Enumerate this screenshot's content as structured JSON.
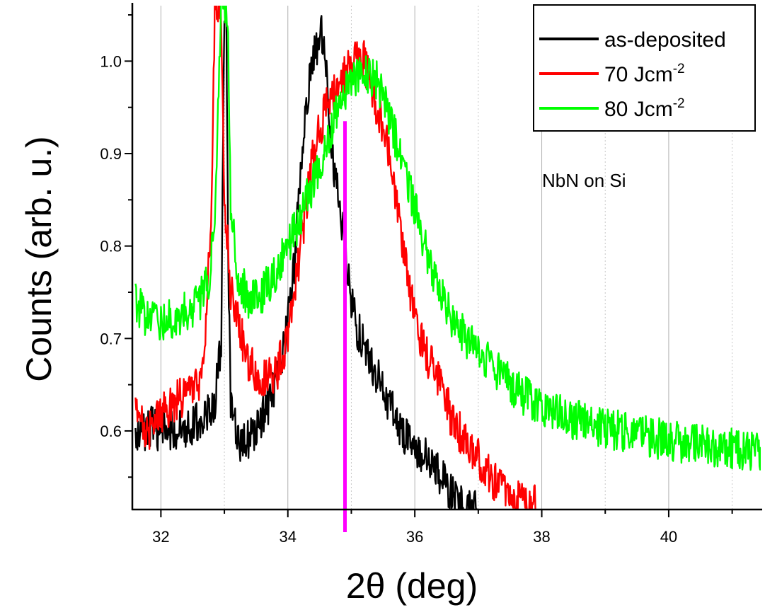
{
  "chart_data": {
    "type": "line",
    "title": "",
    "xlabel": "2θ (deg)",
    "ylabel": "Counts (arb. u.)",
    "xlim": [
      31.55,
      41.45
    ],
    "ylim": [
      0.515,
      1.06
    ],
    "xticks": [
      32,
      34,
      36,
      38,
      40
    ],
    "xtick_labels": [
      "32",
      "34",
      "36",
      "38",
      "40"
    ],
    "yticks": [
      0.6,
      0.7,
      0.8,
      0.9,
      1.0
    ],
    "ytick_labels": [
      "0.6",
      "0.7",
      "0.8",
      "0.9",
      "1.0"
    ],
    "grid": "vertical",
    "legend_position": "top-right",
    "annotation": "NbN on Si",
    "marker_line": {
      "x": 34.9,
      "color": "#ff00ff"
    },
    "series": [
      {
        "name": "as-deposited",
        "name_main": "as-deposited",
        "name_sup": "",
        "color": "#000000",
        "points": [
          [
            31.6,
            0.59
          ],
          [
            31.8,
            0.605
          ],
          [
            32.0,
            0.6
          ],
          [
            32.2,
            0.6
          ],
          [
            32.4,
            0.605
          ],
          [
            32.6,
            0.61
          ],
          [
            32.75,
            0.62
          ],
          [
            32.85,
            0.63
          ],
          [
            32.95,
            0.7
          ],
          [
            33.0,
            1.06
          ],
          [
            33.03,
            1.06
          ],
          [
            33.06,
            0.78
          ],
          [
            33.1,
            0.63
          ],
          [
            33.2,
            0.59
          ],
          [
            33.3,
            0.585
          ],
          [
            33.5,
            0.6
          ],
          [
            33.7,
            0.63
          ],
          [
            33.9,
            0.67
          ],
          [
            34.0,
            0.72
          ],
          [
            34.1,
            0.78
          ],
          [
            34.2,
            0.88
          ],
          [
            34.3,
            0.96
          ],
          [
            34.4,
            1.0
          ],
          [
            34.5,
            1.03
          ],
          [
            34.55,
            1.03
          ],
          [
            34.6,
            1.0
          ],
          [
            34.65,
            0.95
          ],
          [
            34.7,
            0.9
          ],
          [
            34.8,
            0.85
          ],
          [
            34.9,
            0.8
          ],
          [
            35.0,
            0.74
          ],
          [
            35.1,
            0.71
          ],
          [
            35.2,
            0.69
          ],
          [
            35.4,
            0.66
          ],
          [
            35.6,
            0.63
          ],
          [
            35.8,
            0.6
          ],
          [
            36.0,
            0.58
          ],
          [
            36.2,
            0.57
          ],
          [
            36.4,
            0.55
          ],
          [
            36.6,
            0.53
          ],
          [
            36.8,
            0.515
          ],
          [
            37.0,
            0.515
          ]
        ]
      },
      {
        "name": "70 Jcm-2",
        "name_main": "70 Jcm",
        "name_sup": "-2",
        "color": "#ff0000",
        "points": [
          [
            31.6,
            0.62
          ],
          [
            31.8,
            0.6
          ],
          [
            32.0,
            0.62
          ],
          [
            32.2,
            0.63
          ],
          [
            32.4,
            0.64
          ],
          [
            32.6,
            0.65
          ],
          [
            32.7,
            0.7
          ],
          [
            32.8,
            0.85
          ],
          [
            32.85,
            1.06
          ],
          [
            32.95,
            1.06
          ],
          [
            33.0,
            0.85
          ],
          [
            33.1,
            0.75
          ],
          [
            33.2,
            0.72
          ],
          [
            33.4,
            0.67
          ],
          [
            33.6,
            0.66
          ],
          [
            33.8,
            0.66
          ],
          [
            34.0,
            0.7
          ],
          [
            34.2,
            0.8
          ],
          [
            34.4,
            0.9
          ],
          [
            34.6,
            0.95
          ],
          [
            34.8,
            0.97
          ],
          [
            35.0,
            1.0
          ],
          [
            35.2,
            1.0
          ],
          [
            35.4,
            0.95
          ],
          [
            35.6,
            0.9
          ],
          [
            35.8,
            0.8
          ],
          [
            36.0,
            0.72
          ],
          [
            36.2,
            0.68
          ],
          [
            36.4,
            0.65
          ],
          [
            36.6,
            0.61
          ],
          [
            36.8,
            0.59
          ],
          [
            37.0,
            0.57
          ],
          [
            37.2,
            0.55
          ],
          [
            37.4,
            0.54
          ],
          [
            37.6,
            0.525
          ],
          [
            37.8,
            0.515
          ],
          [
            37.9,
            0.52
          ]
        ]
      },
      {
        "name": "80 Jcm-2",
        "name_main": "80 Jcm",
        "name_sup": "-2",
        "color": "#00ff00",
        "points": [
          [
            31.6,
            0.74
          ],
          [
            31.8,
            0.72
          ],
          [
            32.0,
            0.72
          ],
          [
            32.2,
            0.72
          ],
          [
            32.4,
            0.73
          ],
          [
            32.6,
            0.74
          ],
          [
            32.75,
            0.76
          ],
          [
            32.85,
            0.82
          ],
          [
            32.95,
            1.06
          ],
          [
            33.05,
            1.06
          ],
          [
            33.1,
            0.85
          ],
          [
            33.2,
            0.77
          ],
          [
            33.4,
            0.74
          ],
          [
            33.6,
            0.75
          ],
          [
            33.8,
            0.77
          ],
          [
            34.0,
            0.8
          ],
          [
            34.2,
            0.83
          ],
          [
            34.4,
            0.87
          ],
          [
            34.6,
            0.91
          ],
          [
            34.8,
            0.95
          ],
          [
            35.0,
            0.98
          ],
          [
            35.2,
            0.99
          ],
          [
            35.4,
            0.98
          ],
          [
            35.6,
            0.94
          ],
          [
            35.8,
            0.89
          ],
          [
            36.0,
            0.84
          ],
          [
            36.2,
            0.79
          ],
          [
            36.4,
            0.75
          ],
          [
            36.6,
            0.72
          ],
          [
            36.8,
            0.7
          ],
          [
            37.0,
            0.685
          ],
          [
            37.2,
            0.67
          ],
          [
            37.4,
            0.66
          ],
          [
            37.6,
            0.645
          ],
          [
            37.8,
            0.635
          ],
          [
            38.0,
            0.625
          ],
          [
            38.4,
            0.615
          ],
          [
            38.8,
            0.605
          ],
          [
            39.2,
            0.6
          ],
          [
            39.6,
            0.595
          ],
          [
            40.0,
            0.59
          ],
          [
            40.4,
            0.585
          ],
          [
            40.8,
            0.582
          ],
          [
            41.2,
            0.58
          ],
          [
            41.45,
            0.58
          ]
        ]
      }
    ]
  }
}
